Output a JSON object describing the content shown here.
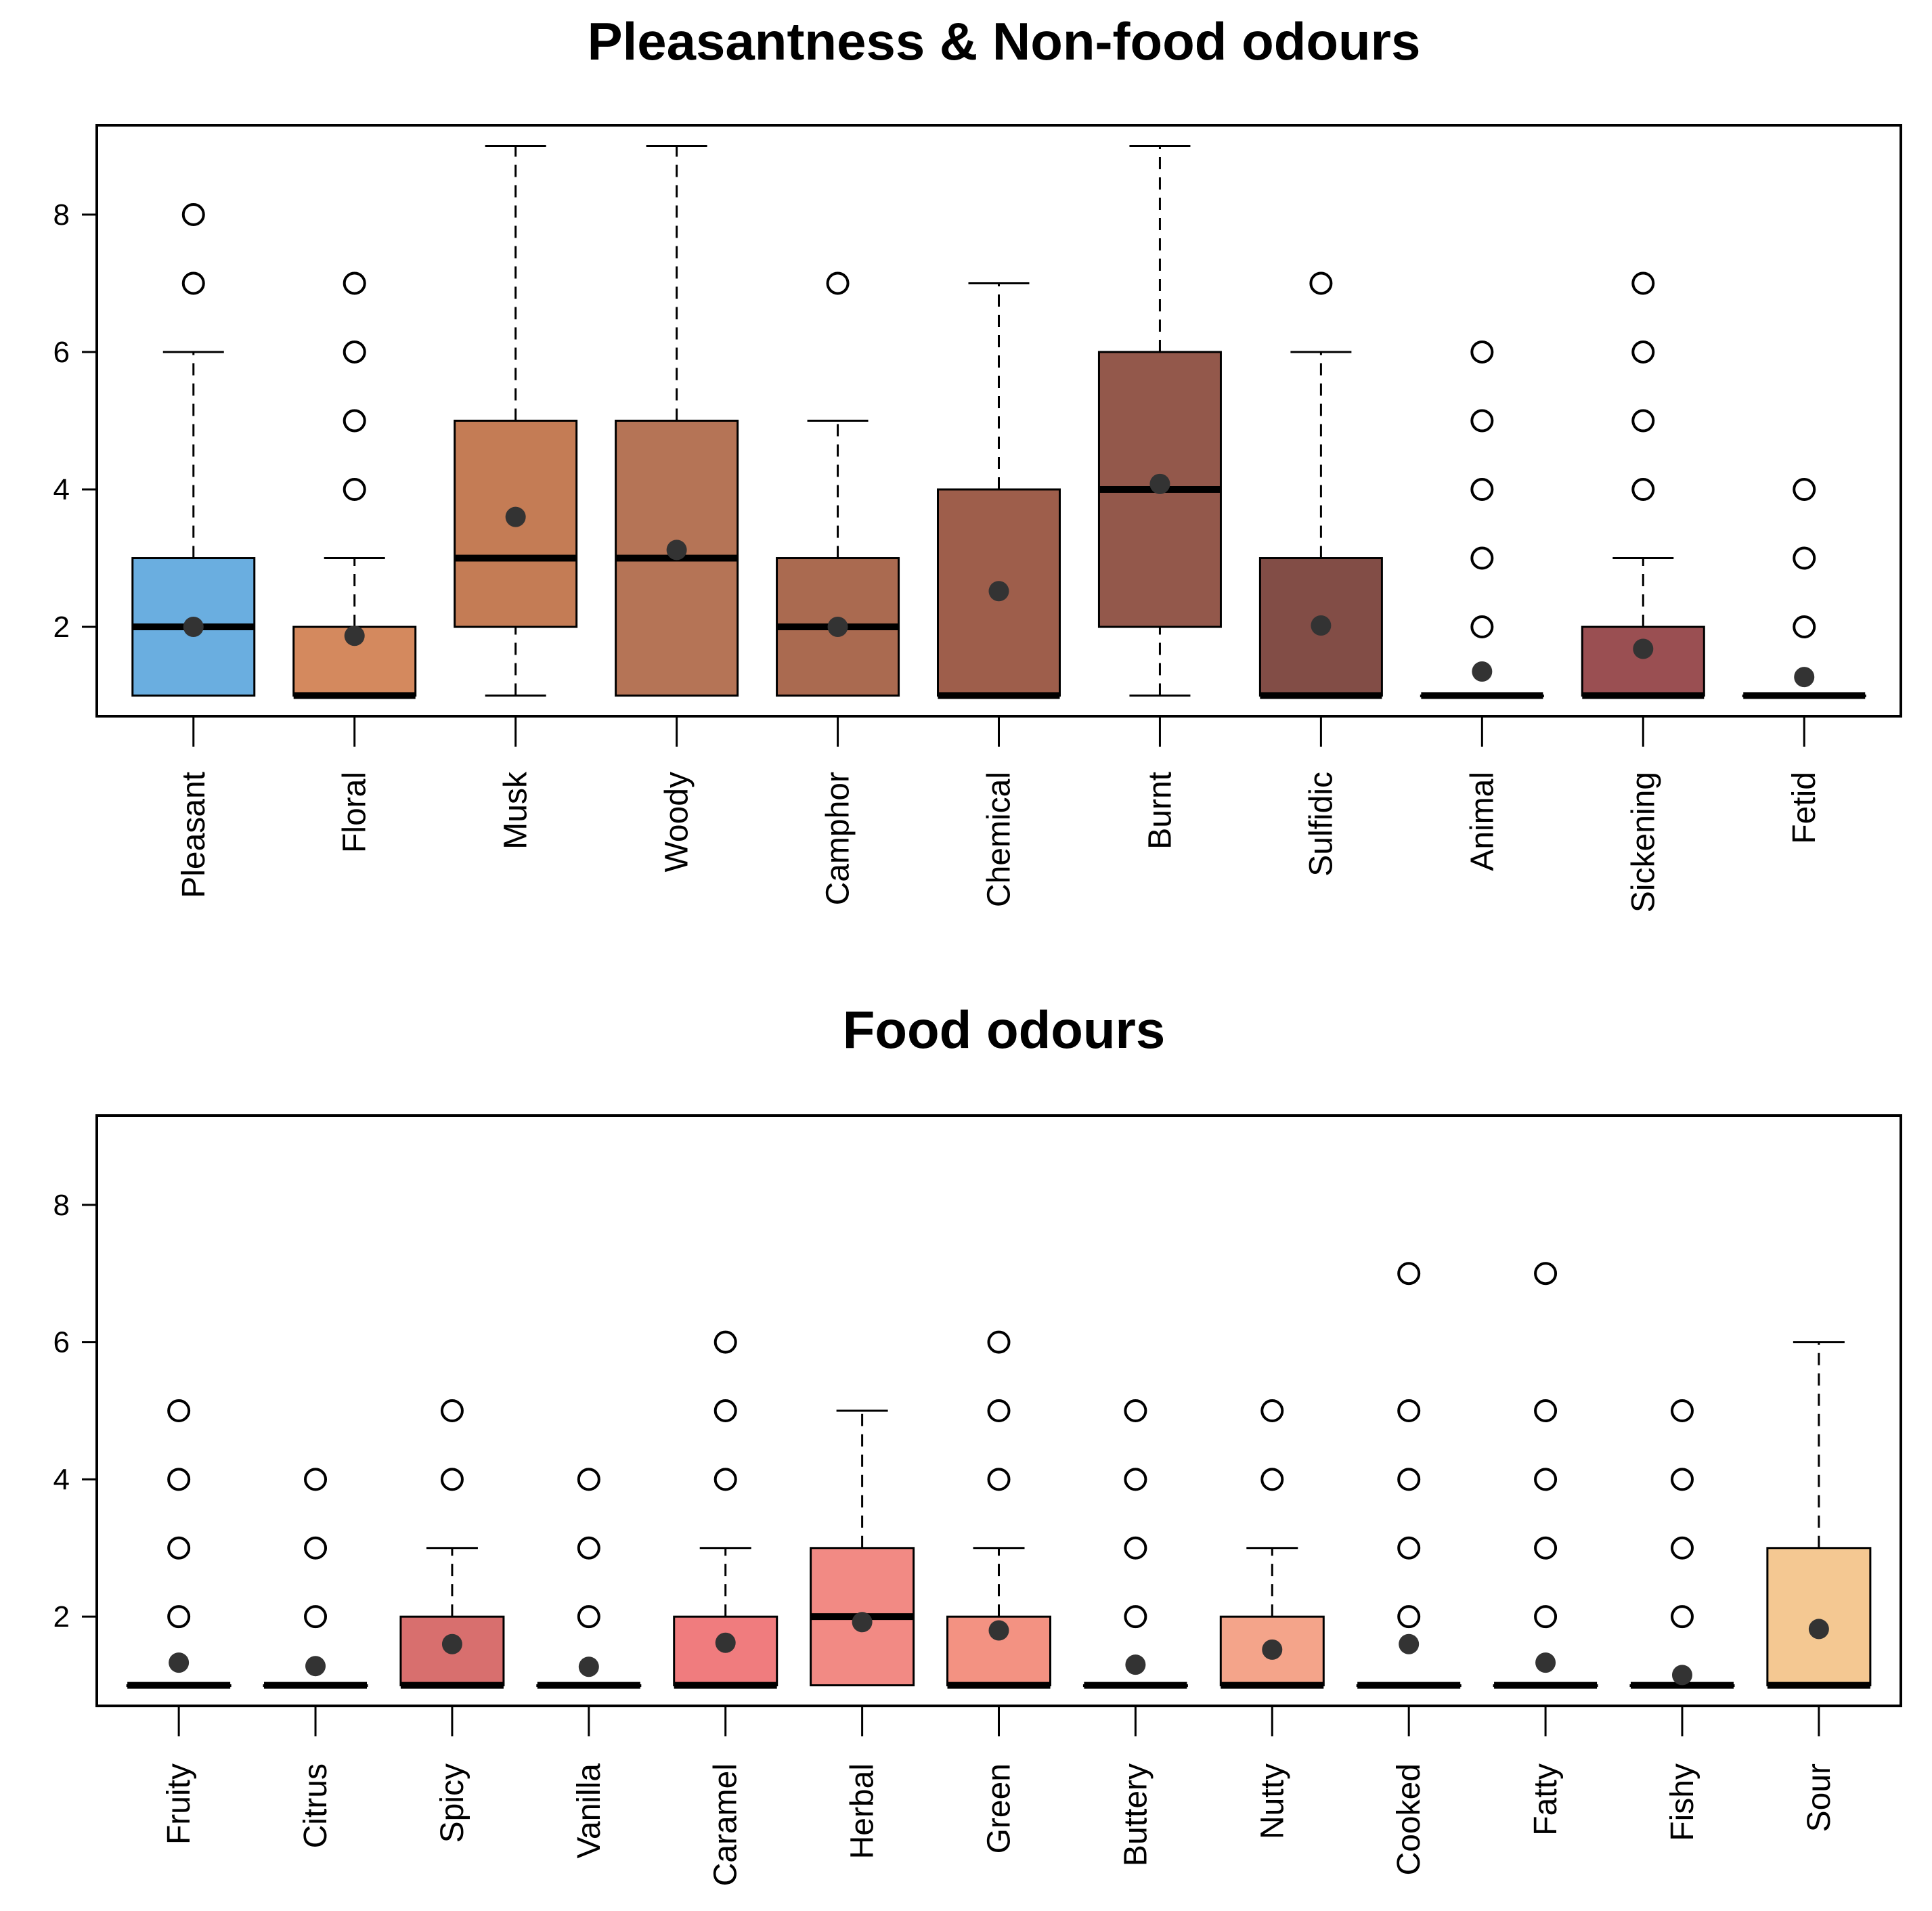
{
  "chart_data": [
    {
      "type": "boxplot",
      "title": "Pleasantness & Non-food odours",
      "xlabel": "",
      "ylabel": "",
      "ylim": [
        0.7,
        9.3
      ],
      "yticks": [
        2,
        4,
        6,
        8
      ],
      "mean_marker": "filled-circle",
      "boxes": [
        {
          "label": "Pleasant",
          "color": "#6aaee0",
          "whisker_low": 1,
          "q1": 1,
          "median": 2,
          "q3": 3,
          "whisker_high": 6,
          "mean": 2.0,
          "outliers": [
            7,
            8
          ]
        },
        {
          "label": "Floral",
          "color": "#d4895e",
          "whisker_low": 1,
          "q1": 1,
          "median": 1,
          "q3": 2,
          "whisker_high": 3,
          "mean": 1.87,
          "outliers": [
            4,
            5,
            6,
            7
          ]
        },
        {
          "label": "Musk",
          "color": "#c47c55",
          "whisker_low": 1,
          "q1": 2,
          "median": 3,
          "q3": 5,
          "whisker_high": 9,
          "mean": 3.6,
          "outliers": []
        },
        {
          "label": "Woody",
          "color": "#b57456",
          "whisker_low": 1,
          "q1": 1,
          "median": 3,
          "q3": 5,
          "whisker_high": 9,
          "mean": 3.12,
          "outliers": []
        },
        {
          "label": "Camphor",
          "color": "#aa6a50",
          "whisker_low": 1,
          "q1": 1,
          "median": 2,
          "q3": 3,
          "whisker_high": 5,
          "mean": 2.0,
          "outliers": [
            7
          ]
        },
        {
          "label": "Chemical",
          "color": "#9e5e4b",
          "whisker_low": 1,
          "q1": 1,
          "median": 1,
          "q3": 4,
          "whisker_high": 7,
          "mean": 2.52,
          "outliers": []
        },
        {
          "label": "Burnt",
          "color": "#93584b",
          "whisker_low": 1,
          "q1": 2,
          "median": 4,
          "q3": 6,
          "whisker_high": 9,
          "mean": 4.08,
          "outliers": []
        },
        {
          "label": "Sulfidic",
          "color": "#824d46",
          "whisker_low": 1,
          "q1": 1,
          "median": 1,
          "q3": 3,
          "whisker_high": 6,
          "mean": 2.02,
          "outliers": [
            7
          ]
        },
        {
          "label": "Animal",
          "color": "#8a4a48",
          "whisker_low": 1,
          "q1": 1,
          "median": 1,
          "q3": 1,
          "whisker_high": 1,
          "mean": 1.35,
          "outliers": [
            2,
            3,
            4,
            5,
            6
          ]
        },
        {
          "label": "Sickening",
          "color": "#9a4f52",
          "whisker_low": 1,
          "q1": 1,
          "median": 1,
          "q3": 2,
          "whisker_high": 3,
          "mean": 1.68,
          "outliers": [
            4,
            5,
            6,
            7
          ]
        },
        {
          "label": "Fetid",
          "color": "#8f4a4a",
          "whisker_low": 1,
          "q1": 1,
          "median": 1,
          "q3": 1,
          "whisker_high": 1,
          "mean": 1.27,
          "outliers": [
            2,
            3,
            4
          ]
        }
      ]
    },
    {
      "type": "boxplot",
      "title": "Food odours",
      "xlabel": "",
      "ylabel": "",
      "ylim": [
        0.7,
        9.3
      ],
      "yticks": [
        2,
        4,
        6,
        8
      ],
      "mean_marker": "filled-circle",
      "boxes": [
        {
          "label": "Fruity",
          "color": "#d96f70",
          "whisker_low": 1,
          "q1": 1,
          "median": 1,
          "q3": 1,
          "whisker_high": 1,
          "mean": 1.33,
          "outliers": [
            2,
            3,
            4,
            5
          ]
        },
        {
          "label": "Citrus",
          "color": "#d86e6e",
          "whisker_low": 1,
          "q1": 1,
          "median": 1,
          "q3": 1,
          "whisker_high": 1,
          "mean": 1.28,
          "outliers": [
            2,
            3,
            4
          ]
        },
        {
          "label": "Spicy",
          "color": "#d86f6e",
          "whisker_low": 1,
          "q1": 1,
          "median": 1,
          "q3": 2,
          "whisker_high": 3,
          "mean": 1.6,
          "outliers": [
            4,
            5
          ]
        },
        {
          "label": "Vanilla",
          "color": "#e07878",
          "whisker_low": 1,
          "q1": 1,
          "median": 1,
          "q3": 1,
          "whisker_high": 1,
          "mean": 1.27,
          "outliers": [
            2,
            3,
            4
          ]
        },
        {
          "label": "Caramel",
          "color": "#f07c7e",
          "whisker_low": 1,
          "q1": 1,
          "median": 1,
          "q3": 2,
          "whisker_high": 3,
          "mean": 1.62,
          "outliers": [
            4,
            5,
            6
          ]
        },
        {
          "label": "Herbal",
          "color": "#f28a84",
          "whisker_low": 1,
          "q1": 1,
          "median": 2,
          "q3": 3,
          "whisker_high": 5,
          "mean": 1.92,
          "outliers": []
        },
        {
          "label": "Green",
          "color": "#f39282",
          "whisker_low": 1,
          "q1": 1,
          "median": 1,
          "q3": 2,
          "whisker_high": 3,
          "mean": 1.8,
          "outliers": [
            4,
            5,
            6
          ]
        },
        {
          "label": "Buttery",
          "color": "#f39b85",
          "whisker_low": 1,
          "q1": 1,
          "median": 1,
          "q3": 1,
          "whisker_high": 1,
          "mean": 1.3,
          "outliers": [
            2,
            3,
            4,
            5
          ]
        },
        {
          "label": "Nutty",
          "color": "#f4a48a",
          "whisker_low": 1,
          "q1": 1,
          "median": 1,
          "q3": 2,
          "whisker_high": 3,
          "mean": 1.52,
          "outliers": [
            4,
            5
          ]
        },
        {
          "label": "Cooked",
          "color": "#f4ad8d",
          "whisker_low": 1,
          "q1": 1,
          "median": 1,
          "q3": 1,
          "whisker_high": 1,
          "mean": 1.6,
          "outliers": [
            2,
            3,
            4,
            5,
            7
          ]
        },
        {
          "label": "Fatty",
          "color": "#f4b590",
          "whisker_low": 1,
          "q1": 1,
          "median": 1,
          "q3": 1,
          "whisker_high": 1,
          "mean": 1.33,
          "outliers": [
            2,
            3,
            4,
            5,
            7
          ]
        },
        {
          "label": "Fishy",
          "color": "#f5bd92",
          "whisker_low": 1,
          "q1": 1,
          "median": 1,
          "q3": 1,
          "whisker_high": 1,
          "mean": 1.15,
          "outliers": [
            2,
            3,
            4,
            5
          ]
        },
        {
          "label": "Sour",
          "color": "#f4c892",
          "whisker_low": 1,
          "q1": 1,
          "median": 1,
          "q3": 3,
          "whisker_high": 6,
          "mean": 1.82,
          "outliers": []
        }
      ]
    }
  ]
}
